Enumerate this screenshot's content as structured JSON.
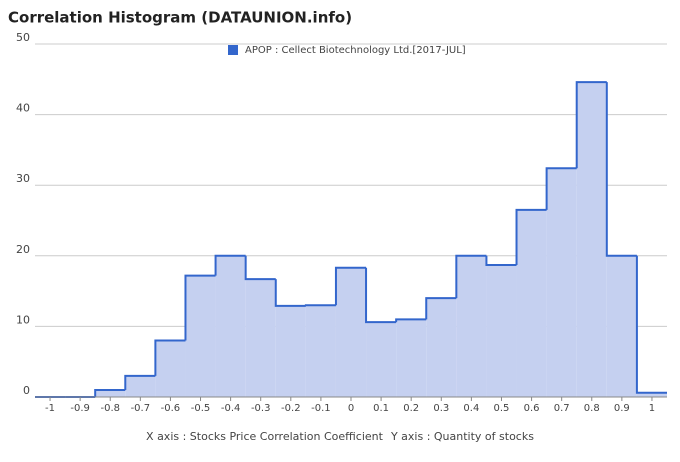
{
  "chart_data": {
    "type": "histogram",
    "title": "Correlation Histogram (DATAUNION.info)",
    "x_label": "X axis : Stocks Price Correlation Coefficient",
    "y_label": "Y axis : Quantity of stocks",
    "series": [
      {
        "name": "APOP : Cellect Biotechnology Ltd.[2017-JUL]",
        "color": "#3366cc",
        "fill": "#c5d0f0",
        "values": [
          0,
          0,
          1,
          3,
          8,
          17.2,
          20,
          16.7,
          12.9,
          13,
          18.3,
          10.6,
          11,
          14,
          20,
          18.7,
          26.5,
          32.4,
          44.6,
          20,
          0.6
        ]
      }
    ],
    "bins": [
      -1.05,
      -0.95,
      -0.85,
      -0.75,
      -0.65,
      -0.55,
      -0.45,
      -0.35,
      -0.25,
      -0.15,
      -0.05,
      0.05,
      0.15,
      0.25,
      0.35,
      0.45,
      0.55,
      0.65,
      0.75,
      0.85,
      0.95,
      1.05
    ],
    "xlim": [
      -1.05,
      1.05
    ],
    "xticks": [
      -1,
      -0.9,
      -0.8,
      -0.7,
      -0.6,
      -0.5,
      -0.4,
      -0.3,
      -0.2,
      -0.1,
      0,
      0.1,
      0.2,
      0.3,
      0.4,
      0.5,
      0.6,
      0.7,
      0.8,
      0.9,
      1
    ],
    "ylim": [
      0,
      50
    ],
    "yticks": [
      0,
      10,
      20,
      30,
      40,
      50
    ],
    "grid": true
  }
}
